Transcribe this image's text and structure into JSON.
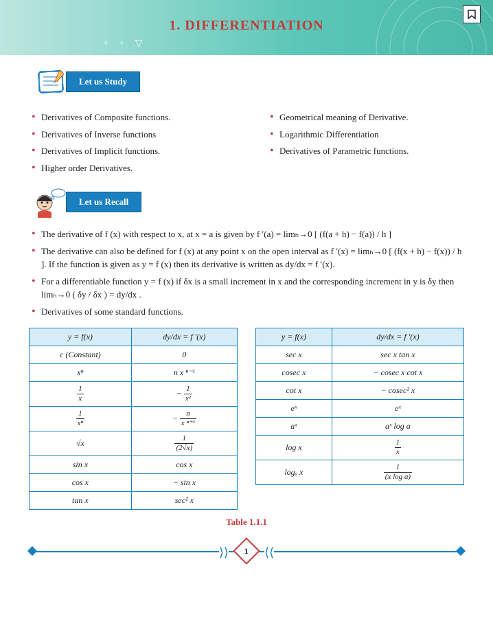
{
  "header": {
    "title": "1.  DIFFERENTIATION",
    "symbols": "+  +  ▽",
    "bg_gradient_start": "#bde6e0",
    "bg_gradient_end": "#4ab8a8",
    "title_color": "#c53a3a"
  },
  "study_tab": {
    "label": "Let us Study"
  },
  "study_points_left": [
    "Derivatives of Composite functions.",
    "Derivatives of Inverse functions",
    "Derivatives of Implicit functions.",
    "Higher order Derivatives."
  ],
  "study_points_right": [
    "Geometrical meaning of Derivative.",
    "Logarithmic Differentiation",
    "Derivatives of Parametric functions."
  ],
  "recall_tab": {
    "label": "Let us Recall"
  },
  "recall_points": [
    "The derivative of f (x) with respect to x, at x = a is given by f ′(a) = limₕ→0 [ (f(a + h) − f(a)) / h ]",
    "The derivative can also be defined for f (x) at any point x on the open interval as f ′(x) = limₕ→0 [ (f(x + h) − f(x)) / h ].  If the function is given as y = f (x) then its derivative is written as dy/dx = f ′(x).",
    "For a differentiable function y = f (x) if δx is a small increment in x and the corresponding increment in y is δy then limₕ→0 ( δy / δx ) = dy/dx .",
    "Derivatives of some standard functions."
  ],
  "tables": {
    "type": "table",
    "header_bg": "#d6ecf7",
    "border_color": "#1a7fbf",
    "caption": "Table 1.1.1",
    "left": {
      "headers": [
        "y = f(x)",
        "dy/dx = f ′(x)"
      ],
      "rows": [
        [
          "c (Constant)",
          "0"
        ],
        [
          "xⁿ",
          "n x ⁿ⁻¹"
        ],
        [
          "1 / x",
          "− 1 / x²"
        ],
        [
          "1 / xⁿ",
          "− n / x ⁿ⁺¹"
        ],
        [
          "√x",
          "1 / (2√x)"
        ],
        [
          "sin x",
          "cos x"
        ],
        [
          "cos x",
          "− sin x"
        ],
        [
          "tan x",
          "sec² x"
        ]
      ]
    },
    "right": {
      "headers": [
        "y = f(x)",
        "dy/dx = f ′(x)"
      ],
      "rows": [
        [
          "sec x",
          "sec x tan x"
        ],
        [
          "cosec x",
          "− cosec x cot x"
        ],
        [
          "cot x",
          "− cosec² x"
        ],
        [
          "eˣ",
          "eˣ"
        ],
        [
          "aˣ",
          "aˣ log a"
        ],
        [
          "log x",
          "1 / x"
        ],
        [
          "logₐ x",
          "1 / (x log a)"
        ]
      ]
    }
  },
  "page_number": "1",
  "colors": {
    "accent_red": "#c53a3a",
    "accent_blue": "#1a7fbf",
    "accent_teal": "#4ab8a8"
  }
}
